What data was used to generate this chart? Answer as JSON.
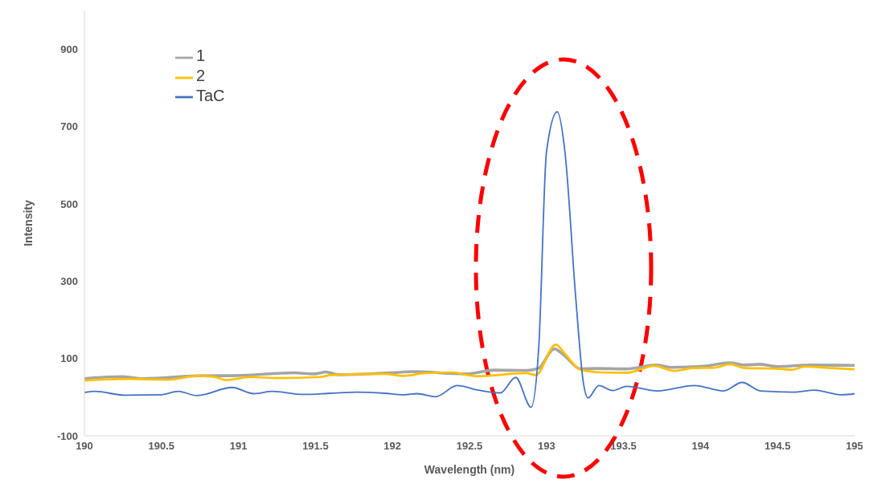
{
  "chart_data": {
    "type": "line",
    "xlabel": "Wavelength (nm)",
    "ylabel": "Intensity",
    "xlim": [
      190,
      195
    ],
    "xticks": [
      190,
      190.5,
      191,
      191.5,
      192,
      192.5,
      193,
      193.5,
      194,
      194.5,
      195
    ],
    "ylim": [
      -100,
      1000
    ],
    "yticks": [
      -100,
      100,
      300,
      500,
      700,
      900
    ],
    "legend": "top left",
    "marker": "none",
    "line_style": "solid",
    "series": [
      {
        "name": "1",
        "color": "#a5a5a5",
        "x": [
          190,
          190.24,
          190.38,
          190.73,
          190.99,
          191.36,
          191.49,
          191.57,
          191.65,
          192.04,
          192.13,
          192.48,
          192.66,
          192.87,
          192.95,
          193.05,
          193.12,
          193.22,
          193.32,
          193.52,
          193.71,
          193.81,
          194.02,
          194.19,
          194.29,
          194.38,
          194.5,
          194.71,
          195
        ],
        "values": [
          48,
          53,
          48,
          55,
          56,
          63,
          60,
          65,
          58,
          64,
          66,
          60,
          70,
          69,
          75,
          125,
          106,
          73,
          74,
          73,
          83,
          77,
          80,
          89,
          83,
          85,
          79,
          83,
          82
        ]
      },
      {
        "name": "2",
        "color": "#ffc000",
        "x": [
          190,
          190.29,
          190.55,
          190.73,
          190.85,
          190.92,
          191.08,
          191.26,
          191.53,
          191.6,
          191.95,
          192.07,
          192.21,
          192.38,
          192.55,
          192.87,
          192.93,
          193.06,
          193.12,
          193.22,
          193.36,
          193.52,
          193.7,
          193.83,
          193.95,
          194.09,
          194.19,
          194.29,
          194.47,
          194.59,
          194.68,
          194.85,
          195
        ],
        "values": [
          43,
          47,
          45,
          55,
          52,
          44,
          52,
          49,
          52,
          57,
          60,
          55,
          62,
          64,
          54,
          62,
          57,
          136,
          112,
          71,
          64,
          63,
          81,
          68,
          75,
          76,
          85,
          75,
          74,
          71,
          79,
          75,
          72
        ]
      },
      {
        "name": "TaC",
        "color": "#4472c4",
        "x": [
          190,
          190.07,
          190.26,
          190.49,
          190.61,
          190.73,
          190.96,
          191.1,
          191.22,
          191.42,
          191.6,
          191.77,
          191.95,
          192.07,
          192.16,
          192.28,
          192.42,
          192.56,
          192.7,
          192.8,
          192.9,
          192.95,
          193,
          193.07,
          193.12,
          193.19,
          193.24,
          193.27,
          193.34,
          193.43,
          193.52,
          193.72,
          193.96,
          194.15,
          194.27,
          194.39,
          194.6,
          194.74,
          194.92,
          195
        ],
        "values": [
          12,
          15,
          5,
          6,
          15,
          4,
          25,
          9,
          15,
          7,
          10,
          13,
          10,
          6,
          9,
          1,
          30,
          18,
          11,
          51,
          -26,
          130,
          634,
          738,
          634,
          257,
          36,
          -2,
          30,
          17,
          28,
          16,
          30,
          16,
          38,
          16,
          13,
          18,
          6,
          9
        ]
      }
    ]
  }
}
